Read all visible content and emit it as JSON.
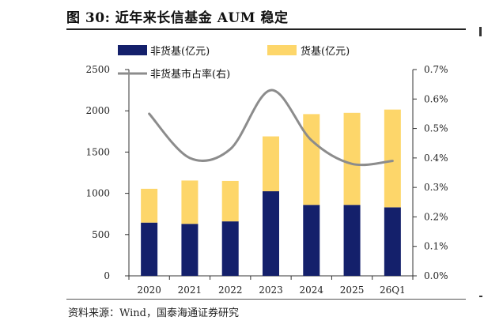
{
  "figure": {
    "title": "图 30:  近年来长信基金 AUM 稳定",
    "source": "资料来源：Wind，国泰海通证券研究"
  },
  "chart_data": {
    "type": "bar",
    "stacked": true,
    "categories": [
      "2020",
      "2021",
      "2022",
      "2023",
      "2024",
      "2025",
      "26Q1"
    ],
    "series": [
      {
        "name": "非货基(亿元)",
        "type": "bar",
        "axis": "left",
        "color": "#14206b",
        "values": [
          645,
          630,
          660,
          1025,
          860,
          860,
          830
        ]
      },
      {
        "name": "货基(亿元)",
        "type": "bar",
        "axis": "left",
        "color": "#fdd66a",
        "values": [
          410,
          525,
          490,
          665,
          1100,
          1115,
          1185
        ]
      },
      {
        "name": "非货基市占率(右)",
        "type": "line",
        "axis": "right",
        "color": "#8c8c8c",
        "values": [
          0.55,
          0.4,
          0.43,
          0.63,
          0.46,
          0.38,
          0.39
        ]
      }
    ],
    "y_left": {
      "min": 0,
      "max": 2500,
      "ticks": [
        0,
        500,
        1000,
        1500,
        2000,
        2500
      ],
      "tick_labels": [
        "0",
        "500",
        "1000",
        "1500",
        "2000",
        "2500"
      ]
    },
    "y_right": {
      "min": 0,
      "max": 0.7,
      "ticks": [
        0,
        0.1,
        0.2,
        0.3,
        0.4,
        0.5,
        0.6,
        0.7
      ],
      "tick_labels": [
        "0.0%",
        "0.1%",
        "0.2%",
        "0.3%",
        "0.4%",
        "0.5%",
        "0.6%",
        "0.7%"
      ]
    },
    "grid": false,
    "legend": "top"
  }
}
